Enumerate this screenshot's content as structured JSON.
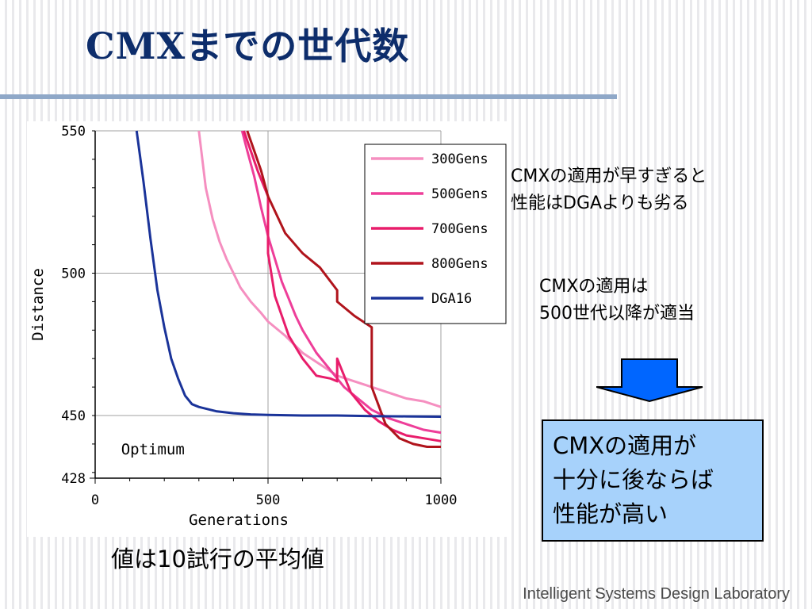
{
  "slide": {
    "title": "CMXまでの世代数",
    "note1": [
      "CMXの適用が早すぎると",
      "性能はDGAよりも劣る"
    ],
    "note2": [
      "CMXの適用は",
      "500世代以降が適当"
    ],
    "conclusion": [
      "CMXの適用が",
      "十分に後ならば",
      "性能が高い"
    ],
    "footnote": "値は10試行の平均値",
    "footer": "Intelligent Systems Design Laboratory",
    "arrow_color": "#0066ff"
  },
  "chart_data": {
    "type": "line",
    "xlabel": "Generations",
    "ylabel": "Distance",
    "xlim": [
      0,
      1000
    ],
    "ylim": [
      428,
      550
    ],
    "x_ticks": [
      "0",
      "500",
      "1000"
    ],
    "y_ticks": [
      "428",
      "450",
      "500",
      "550"
    ],
    "grid": "major",
    "legend_position": "top-right",
    "annotations": [
      {
        "text": "Optimum",
        "x": 75,
        "y": 438
      }
    ],
    "series": [
      {
        "name": "300Gens",
        "color": "#f58fc0",
        "x": [
          300,
          320,
          340,
          360,
          380,
          400,
          420,
          450,
          480,
          500,
          550,
          600,
          650,
          700,
          750,
          800,
          850,
          900,
          950,
          1000
        ],
        "y": [
          550,
          530,
          519,
          511,
          505,
          500,
          495,
          490,
          486,
          483,
          478,
          472,
          468,
          464,
          462,
          460,
          458,
          456,
          455,
          453
        ]
      },
      {
        "name": "500Gens",
        "color": "#ee3e99",
        "x": [
          425,
          440,
          460,
          480,
          500,
          520,
          540,
          560,
          580,
          600,
          640,
          680,
          720,
          760,
          800,
          850,
          900,
          950,
          1000
        ],
        "y": [
          550,
          543,
          534,
          523,
          513,
          505,
          497,
          491,
          485,
          480,
          472,
          466,
          460,
          456,
          452,
          449,
          447,
          445,
          444
        ]
      },
      {
        "name": "700Gens",
        "color": "#e81d6b",
        "x": [
          430,
          450,
          470,
          490,
          500,
          500,
          520,
          560,
          600,
          640,
          680,
          700,
          700,
          740,
          780,
          820,
          860,
          900,
          950,
          1000
        ],
        "y": [
          550,
          543,
          536,
          530,
          527,
          507,
          492,
          478,
          470,
          464,
          463,
          462,
          470,
          458,
          452,
          448,
          445,
          443,
          442,
          441
        ]
      },
      {
        "name": "800Gens",
        "color": "#b0141c",
        "x": [
          440,
          460,
          480,
          500,
          550,
          600,
          650,
          700,
          700,
          750,
          800,
          800,
          840,
          880,
          920,
          960,
          1000
        ],
        "y": [
          550,
          543,
          536,
          527,
          514,
          507,
          502,
          494,
          490,
          485,
          481,
          460,
          447,
          442,
          440,
          439,
          439
        ]
      },
      {
        "name": "DGA16",
        "color": "#1a3399",
        "x": [
          120,
          140,
          160,
          180,
          200,
          220,
          240,
          260,
          280,
          300,
          350,
          400,
          450,
          500,
          600,
          700,
          800,
          900,
          1000
        ],
        "y": [
          550,
          532,
          512,
          494,
          481,
          470,
          463,
          457,
          454,
          453,
          451.5,
          450.8,
          450.4,
          450.2,
          450,
          450,
          449.8,
          449.7,
          449.6
        ]
      }
    ]
  }
}
